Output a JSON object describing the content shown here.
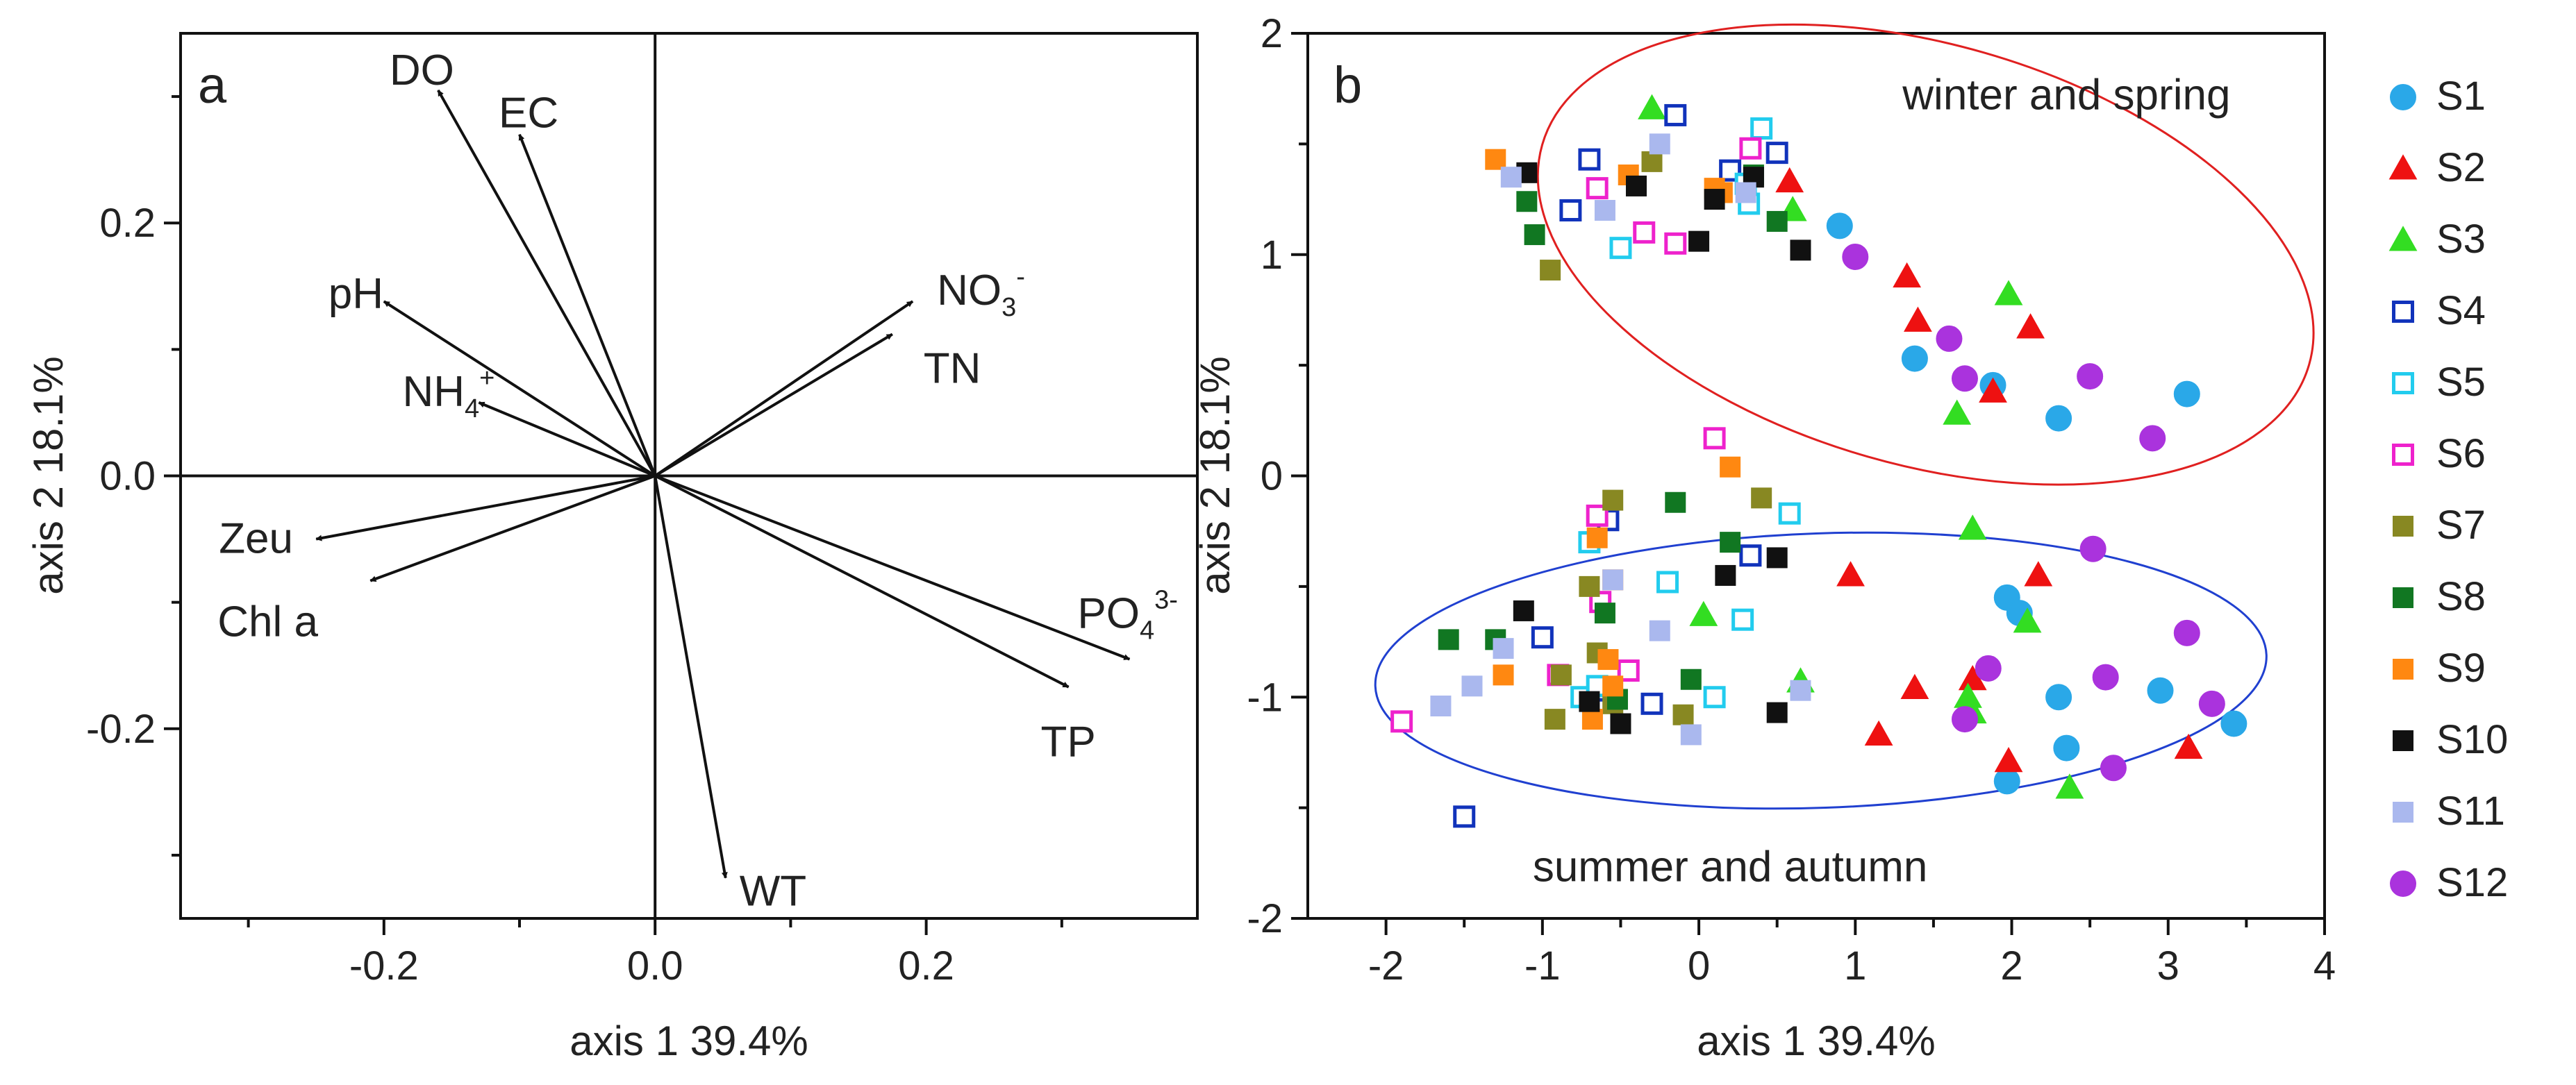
{
  "chart_data": [
    {
      "type": "biplot",
      "panel_label": "a",
      "xlabel": "axis 1 39.4%",
      "ylabel": "axis 2 18.1%",
      "xlim": [
        -0.35,
        0.4
      ],
      "ylim": [
        -0.35,
        0.35
      ],
      "xticks": [
        -0.2,
        0.0,
        0.2
      ],
      "yticks": [
        -0.2,
        0.0,
        0.2
      ],
      "xtick_labels": [
        "-0.2",
        "0.0",
        "0.2"
      ],
      "ytick_labels": [
        "-0.2",
        "0.0",
        "0.2"
      ],
      "vectors": [
        {
          "base": "DO",
          "sup": "",
          "sub": "",
          "x": -0.16,
          "y": 0.305
        },
        {
          "base": "EC",
          "sup": "",
          "sub": "",
          "x": -0.1,
          "y": 0.27
        },
        {
          "base": "pH",
          "sup": "",
          "sub": "",
          "x": -0.2,
          "y": 0.138
        },
        {
          "base": "NH",
          "sup": "+",
          "sub": "4",
          "x": -0.13,
          "y": 0.058
        },
        {
          "base": "NO",
          "sup": "-",
          "sub": "3",
          "x": 0.19,
          "y": 0.138
        },
        {
          "base": "TN",
          "sup": "",
          "sub": "",
          "x": 0.175,
          "y": 0.112
        },
        {
          "base": "Zeu",
          "sup": "",
          "sub": "",
          "x": -0.25,
          "y": -0.05
        },
        {
          "base": "Chl a",
          "sup": "",
          "sub": "",
          "x": -0.21,
          "y": -0.083
        },
        {
          "base": "PO",
          "sup": "3-",
          "sub": "4",
          "x": 0.35,
          "y": -0.145
        },
        {
          "base": "TP",
          "sup": "",
          "sub": "",
          "x": 0.305,
          "y": -0.167
        },
        {
          "base": "WT",
          "sup": "",
          "sub": "",
          "x": 0.052,
          "y": -0.318
        }
      ]
    },
    {
      "type": "scatter",
      "panel_label": "b",
      "xlabel": "axis 1 39.4%",
      "ylabel": "axis 2 18.1%",
      "xlim": [
        -2.5,
        4
      ],
      "ylim": [
        -2,
        2
      ],
      "xticks": [
        -2,
        -1,
        0,
        1,
        2,
        3,
        4
      ],
      "yticks": [
        -2,
        -1,
        0,
        1,
        2
      ],
      "xtick_labels": [
        "-2",
        "-1",
        "0",
        "1",
        "2",
        "3",
        "4"
      ],
      "ytick_labels": [
        "-2",
        "-1",
        "0",
        "1",
        "2"
      ],
      "annotations": [
        {
          "text": "winter and spring",
          "x": 2.35,
          "y": 1.72
        },
        {
          "text": "summer and autumn",
          "x": 0.2,
          "y": -1.77
        }
      ],
      "ellipses": [
        {
          "group": "winter and spring",
          "cx": 1.45,
          "cy": 1.0,
          "rx": 2.55,
          "ry": 0.95,
          "angle_deg": 16,
          "color": "#e02020"
        },
        {
          "group": "summer and autumn",
          "cx": 0.78,
          "cy": -0.88,
          "rx": 2.85,
          "ry": 0.62,
          "angle_deg": -2,
          "color": "#2040d0"
        }
      ],
      "series": [
        {
          "name": "S1",
          "marker": "circle",
          "color": "#2aa8e8",
          "filled": true,
          "points": [
            [
              0.9,
              1.13
            ],
            [
              1.38,
              0.53
            ],
            [
              1.88,
              0.41
            ],
            [
              2.3,
              0.26
            ],
            [
              3.12,
              0.37
            ],
            [
              1.97,
              -0.55
            ],
            [
              2.05,
              -0.62
            ],
            [
              2.3,
              -1.0
            ],
            [
              2.95,
              -0.97
            ],
            [
              3.42,
              -1.12
            ],
            [
              2.35,
              -1.23
            ],
            [
              1.97,
              -1.38
            ]
          ]
        },
        {
          "name": "S2",
          "marker": "triangle",
          "color": "#ee1111",
          "filled": true,
          "points": [
            [
              0.58,
              1.33
            ],
            [
              1.33,
              0.9
            ],
            [
              1.4,
              0.7
            ],
            [
              2.12,
              0.67
            ],
            [
              1.88,
              0.38
            ],
            [
              0.97,
              -0.45
            ],
            [
              2.17,
              -0.45
            ],
            [
              1.75,
              -0.92
            ],
            [
              1.38,
              -0.96
            ],
            [
              1.15,
              -1.17
            ],
            [
              1.98,
              -1.29
            ],
            [
              3.13,
              -1.23
            ]
          ]
        },
        {
          "name": "S3",
          "marker": "triangle",
          "color": "#33dd22",
          "filled": true,
          "points": [
            [
              -0.3,
              1.66
            ],
            [
              0.6,
              1.2
            ],
            [
              1.98,
              0.82
            ],
            [
              1.65,
              0.28
            ],
            [
              0.03,
              -0.63
            ],
            [
              0.65,
              -0.93
            ],
            [
              1.75,
              -0.24
            ],
            [
              2.1,
              -0.66
            ],
            [
              1.72,
              -1.0
            ],
            [
              1.75,
              -1.07
            ],
            [
              2.37,
              -1.41
            ]
          ]
        },
        {
          "name": "S4",
          "marker": "square",
          "color": "#1133bb",
          "filled": false,
          "points": [
            [
              -0.7,
              1.43
            ],
            [
              -0.15,
              1.63
            ],
            [
              0.2,
              1.38
            ],
            [
              0.5,
              1.46
            ],
            [
              -0.82,
              1.2
            ],
            [
              0.33,
              -0.36
            ],
            [
              -1.0,
              -0.73
            ],
            [
              -0.58,
              -0.2
            ],
            [
              -0.63,
              -0.97
            ],
            [
              -0.3,
              -1.03
            ],
            [
              -1.5,
              -1.54
            ]
          ]
        },
        {
          "name": "S5",
          "marker": "square",
          "color": "#22ccee",
          "filled": false,
          "points": [
            [
              0.4,
              1.57
            ],
            [
              0.3,
              1.32
            ],
            [
              -0.5,
              1.03
            ],
            [
              0.32,
              1.23
            ],
            [
              -0.7,
              -0.3
            ],
            [
              0.58,
              -0.17
            ],
            [
              -0.2,
              -0.48
            ],
            [
              0.28,
              -0.65
            ],
            [
              -0.75,
              -1.0
            ],
            [
              -0.65,
              -0.95
            ],
            [
              0.1,
              -1.0
            ]
          ]
        },
        {
          "name": "S6",
          "marker": "square",
          "color": "#ee22cc",
          "filled": false,
          "points": [
            [
              0.33,
              1.48
            ],
            [
              -0.65,
              1.3
            ],
            [
              -0.35,
              1.1
            ],
            [
              -0.15,
              1.05
            ],
            [
              0.1,
              0.17
            ],
            [
              -0.65,
              -0.18
            ],
            [
              -0.63,
              -0.57
            ],
            [
              -0.9,
              -0.9
            ],
            [
              -0.45,
              -0.88
            ],
            [
              -1.9,
              -1.11
            ]
          ]
        },
        {
          "name": "S7",
          "marker": "square",
          "color": "#888822",
          "filled": false,
          "fill_color": "#888822",
          "points": [
            [
              -0.3,
              1.42
            ],
            [
              -0.95,
              0.93
            ],
            [
              0.4,
              -0.1
            ],
            [
              -0.55,
              -0.11
            ],
            [
              -0.7,
              -0.5
            ],
            [
              -0.65,
              -0.8
            ],
            [
              -0.88,
              -0.9
            ],
            [
              -0.92,
              -1.1
            ],
            [
              -0.1,
              -1.08
            ],
            [
              -0.55,
              -1.03
            ]
          ]
        },
        {
          "name": "S8",
          "marker": "square",
          "color": "#117722",
          "filled": true,
          "points": [
            [
              -1.1,
              1.24
            ],
            [
              -1.05,
              1.09
            ],
            [
              0.35,
              1.36
            ],
            [
              0.5,
              1.15
            ],
            [
              -0.15,
              -0.12
            ],
            [
              0.2,
              -0.3
            ],
            [
              -0.6,
              -0.62
            ],
            [
              -1.6,
              -0.74
            ],
            [
              -1.3,
              -0.74
            ],
            [
              -0.05,
              -0.92
            ],
            [
              -0.52,
              -1.01
            ]
          ]
        },
        {
          "name": "S9",
          "marker": "square",
          "color": "#ff8811",
          "filled": true,
          "points": [
            [
              -1.3,
              1.43
            ],
            [
              -0.45,
              1.36
            ],
            [
              0.15,
              1.28
            ],
            [
              0.1,
              1.3
            ],
            [
              0.2,
              0.04
            ],
            [
              -0.65,
              -0.28
            ],
            [
              -0.55,
              -0.47
            ],
            [
              -0.58,
              -0.83
            ],
            [
              -1.25,
              -0.9
            ],
            [
              -0.55,
              -0.95
            ],
            [
              -0.68,
              -1.1
            ]
          ]
        },
        {
          "name": "S10",
          "marker": "square",
          "color": "#111111",
          "filled": true,
          "points": [
            [
              -1.1,
              1.37
            ],
            [
              -0.4,
              1.31
            ],
            [
              0.0,
              1.06
            ],
            [
              0.1,
              1.25
            ],
            [
              0.35,
              1.35
            ],
            [
              0.65,
              1.02
            ],
            [
              0.5,
              -0.37
            ],
            [
              0.17,
              -0.45
            ],
            [
              -1.12,
              -0.61
            ],
            [
              -0.5,
              -1.12
            ],
            [
              0.5,
              -1.07
            ],
            [
              -0.7,
              -1.02
            ]
          ]
        },
        {
          "name": "S11",
          "marker": "square",
          "color": "#aab8ee",
          "filled": true,
          "points": [
            [
              -1.2,
              1.35
            ],
            [
              -0.6,
              1.2
            ],
            [
              -0.25,
              1.5
            ],
            [
              0.3,
              1.28
            ],
            [
              -0.55,
              -0.47
            ],
            [
              -0.25,
              -0.7
            ],
            [
              -1.25,
              -0.78
            ],
            [
              -1.45,
              -0.95
            ],
            [
              -1.65,
              -1.04
            ],
            [
              0.65,
              -0.97
            ],
            [
              -0.05,
              -1.17
            ]
          ]
        },
        {
          "name": "S12",
          "marker": "circle",
          "color": "#aa33dd",
          "filled": true,
          "points": [
            [
              1.0,
              0.99
            ],
            [
              1.6,
              0.62
            ],
            [
              1.7,
              0.44
            ],
            [
              2.5,
              0.45
            ],
            [
              2.9,
              0.17
            ],
            [
              2.52,
              -0.33
            ],
            [
              3.12,
              -0.71
            ],
            [
              1.85,
              -0.87
            ],
            [
              2.6,
              -0.91
            ],
            [
              3.28,
              -1.03
            ],
            [
              1.7,
              -1.1
            ],
            [
              2.65,
              -1.32
            ]
          ]
        }
      ]
    }
  ]
}
